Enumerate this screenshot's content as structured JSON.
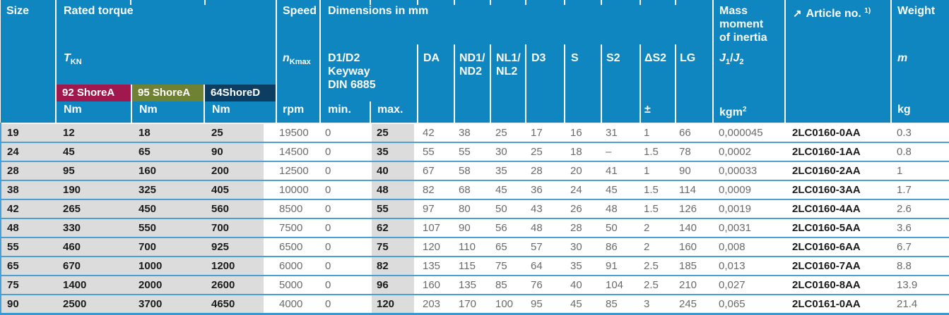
{
  "table": {
    "colors": {
      "header_bg": "#0f86c0",
      "badge_92shorea": "#a0184e",
      "badge_95shorea": "#6f8132",
      "badge_64shored": "#0d3d60",
      "row_line": "#4aa0d4",
      "shaded_cell": "#dcdcdc"
    },
    "header": {
      "size_label": "Size",
      "rated_torque": {
        "title": "Rated torque",
        "symbol": "T",
        "symbol_sub": "KN",
        "variants": [
          {
            "label": "92 ShoreA",
            "unit": "Nm"
          },
          {
            "label": "95 ShoreA",
            "unit": "Nm"
          },
          {
            "label": "64ShoreD",
            "unit": "Nm"
          }
        ]
      },
      "speed": {
        "title": "Speed",
        "symbol": "n",
        "symbol_sub": "Kmax",
        "unit": "rpm"
      },
      "dimensions": {
        "title": "Dimensions in mm",
        "keyway_lines": [
          "D1/D2",
          "Keyway",
          "DIN 6885"
        ],
        "min_label": "min.",
        "max_label": "max.",
        "col_da": "DA",
        "col_nd": [
          "ND1/",
          "ND2"
        ],
        "col_nl": [
          "NL1/",
          "NL2"
        ],
        "col_d3": "D3",
        "col_s": "S",
        "col_s2": "S2",
        "col_ds2": "ΔS2",
        "ds2_unit": "±",
        "col_lg": "LG"
      },
      "inertia": {
        "title_lines": [
          "Mass",
          "moment",
          "of inertia"
        ],
        "symbol_1": "J",
        "symbol_1_sub": "1",
        "slash": "/",
        "symbol_2": "J",
        "symbol_2_sub": "2",
        "unit_base": "kgm",
        "unit_sup": "2"
      },
      "article": {
        "arrow": "↗",
        "title": "Article no.",
        "footnote": "1)"
      },
      "weight": {
        "title": "Weight",
        "symbol": "m",
        "unit": "kg"
      }
    },
    "rows": [
      {
        "size": "19",
        "t92": "12",
        "t95": "18",
        "t64": "25",
        "rpm": "19500",
        "min": "0",
        "max": "25",
        "da": "42",
        "nd": "38",
        "nl": "25",
        "d3": "17",
        "s": "16",
        "s2": "31",
        "ds2": "1",
        "lg": "66",
        "inertia": "0,000045",
        "article": "2LC0160-0AA",
        "weight": "0.3"
      },
      {
        "size": "24",
        "t92": "45",
        "t95": "65",
        "t64": "90",
        "rpm": "14500",
        "min": "0",
        "max": "35",
        "da": "55",
        "nd": "55",
        "nl": "30",
        "d3": "25",
        "s": "18",
        "s2": "–",
        "ds2": "1.5",
        "lg": "78",
        "inertia": "0,0002",
        "article": "2LC0160-1AA",
        "weight": "0.8"
      },
      {
        "size": "28",
        "t92": "95",
        "t95": "160",
        "t64": "200",
        "rpm": "12500",
        "min": "0",
        "max": "40",
        "da": "67",
        "nd": "58",
        "nl": "35",
        "d3": "28",
        "s": "20",
        "s2": "41",
        "ds2": "1",
        "lg": "90",
        "inertia": "0,00033",
        "article": "2LC0160-2AA",
        "weight": "1"
      },
      {
        "size": "38",
        "t92": "190",
        "t95": "325",
        "t64": "405",
        "rpm": "10000",
        "min": "0",
        "max": "48",
        "da": "82",
        "nd": "68",
        "nl": "45",
        "d3": "36",
        "s": "24",
        "s2": "45",
        "ds2": "1.5",
        "lg": "114",
        "inertia": "0,0009",
        "article": "2LC0160-3AA",
        "weight": "1.7"
      },
      {
        "size": "42",
        "t92": "265",
        "t95": "450",
        "t64": "560",
        "rpm": "8500",
        "min": "0",
        "max": "55",
        "da": "97",
        "nd": "80",
        "nl": "50",
        "d3": "43",
        "s": "26",
        "s2": "48",
        "ds2": "1.5",
        "lg": "126",
        "inertia": "0,0019",
        "article": "2LC0160-4AA",
        "weight": "2.6"
      },
      {
        "size": "48",
        "t92": "330",
        "t95": "550",
        "t64": "700",
        "rpm": "7500",
        "min": "0",
        "max": "62",
        "da": "107",
        "nd": "90",
        "nl": "56",
        "d3": "48",
        "s": "28",
        "s2": "50",
        "ds2": "2",
        "lg": "140",
        "inertia": "0,0031",
        "article": "2LC0160-5AA",
        "weight": "3.6"
      },
      {
        "size": "55",
        "t92": "460",
        "t95": "700",
        "t64": "925",
        "rpm": "6500",
        "min": "0",
        "max": "75",
        "da": "120",
        "nd": "110",
        "nl": "65",
        "d3": "57",
        "s": "30",
        "s2": "86",
        "ds2": "2",
        "lg": "160",
        "inertia": "0,008",
        "article": "2LC0160-6AA",
        "weight": "6.7"
      },
      {
        "size": "65",
        "t92": "670",
        "t95": "1000",
        "t64": "1200",
        "rpm": "6000",
        "min": "0",
        "max": "82",
        "da": "135",
        "nd": "115",
        "nl": "75",
        "d3": "64",
        "s": "35",
        "s2": "91",
        "ds2": "2.5",
        "lg": "185",
        "inertia": "0,013",
        "article": "2LC0160-7AA",
        "weight": "8.8"
      },
      {
        "size": "75",
        "t92": "1400",
        "t95": "2000",
        "t64": "2600",
        "rpm": "5000",
        "min": "0",
        "max": "96",
        "da": "160",
        "nd": "135",
        "nl": "85",
        "d3": "76",
        "s": "40",
        "s2": "104",
        "ds2": "2.5",
        "lg": "210",
        "inertia": "0,027",
        "article": "2LC0160-8AA",
        "weight": "13.9"
      },
      {
        "size": "90",
        "t92": "2500",
        "t95": "3700",
        "t64": "4650",
        "rpm": "4000",
        "min": "0",
        "max": "120",
        "da": "203",
        "nd": "170",
        "nl": "100",
        "d3": "95",
        "s": "45",
        "s2": "85",
        "ds2": "3",
        "lg": "245",
        "inertia": "0,065",
        "article": "2LC0161-0AA",
        "weight": "21.4"
      }
    ]
  }
}
